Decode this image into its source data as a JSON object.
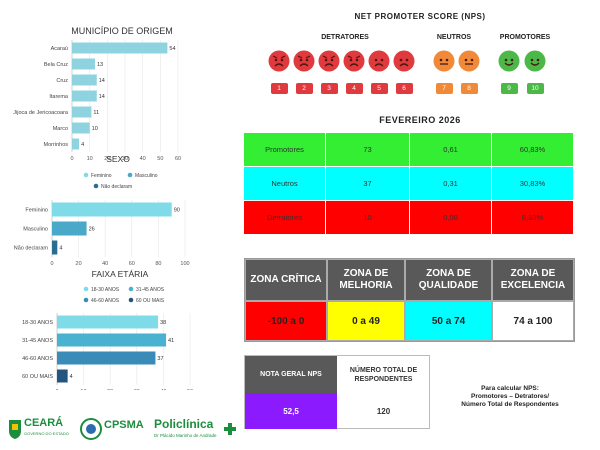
{
  "charts": {
    "municipio": {
      "title": "MUNICÍPIO DE ORIGEM",
      "categories": [
        "Acaraú",
        "Bela Cruz",
        "Cruz",
        "Itarema",
        "Jijoca de Jericoacoara",
        "Marco",
        "Morrinhos"
      ],
      "values": [
        54,
        13,
        14,
        14,
        11,
        10,
        4
      ],
      "x_ticks": [
        "0",
        "10",
        "20",
        "30",
        "40",
        "50",
        "60"
      ],
      "xlim": [
        0,
        60
      ],
      "color": "#8fd3e0"
    },
    "sexo": {
      "title": "SEXO",
      "legend": [
        "Feminino",
        "Masculino",
        "Não declaram"
      ],
      "legend_colors": [
        "#7fdbe8",
        "#4aa9c9",
        "#2a6d93"
      ],
      "categories": [
        "Feminino",
        "Masculino",
        "Não declaram"
      ],
      "values": [
        90,
        26,
        4
      ],
      "colors": [
        "#7fdbe8",
        "#4aa9c9",
        "#2a6d93"
      ],
      "x_ticks": [
        "0",
        "20",
        "40",
        "60",
        "80",
        "100"
      ],
      "xlim": [
        0,
        100
      ]
    },
    "faixa": {
      "title": "FAIXA ETÁRIA",
      "legend": [
        "18-30 ANOS",
        "31-45 ANOS",
        "46-60 ANOS",
        "60 OU MAIS"
      ],
      "legend_colors": [
        "#7fdbe8",
        "#49b2d0",
        "#3a8bb8",
        "#24557f"
      ],
      "categories": [
        "18-30 ANOS",
        "31-45 ANOS",
        "46-60 ANOS",
        "60 OU MAIS"
      ],
      "values": [
        38,
        41,
        37,
        4
      ],
      "colors": [
        "#7fdbe8",
        "#49b2d0",
        "#3a8bb8",
        "#24557f"
      ],
      "x_ticks": [
        "0",
        "10",
        "20",
        "30",
        "40",
        "50"
      ],
      "xlim": [
        0,
        50
      ]
    }
  },
  "nps": {
    "title": "NET PROMOTER SCORE (NPS)",
    "groups": {
      "detratores": "DETRATORES",
      "neutros": "NEUTROS",
      "promotores": "PROMOTORES"
    },
    "scores": [
      "1",
      "2",
      "3",
      "4",
      "5",
      "6",
      "7",
      "8",
      "9",
      "10"
    ],
    "detractor_color": "#e0393e",
    "neutral_color": "#f08a38",
    "promoter_color": "#4cb848"
  },
  "period": "FEVEREIRO 2026",
  "results": {
    "rows": [
      {
        "label": "Promotores",
        "count": "73",
        "ratio": "0,61",
        "pct": "60,83%",
        "bg": "#33ee33"
      },
      {
        "label": "Neutros",
        "count": "37",
        "ratio": "0,31",
        "pct": "30,83%",
        "bg": "#00ffff"
      },
      {
        "label": "Detratores",
        "count": "10",
        "ratio": "0,08",
        "pct": "8,33%",
        "bg": "#ff0000"
      }
    ]
  },
  "zones": {
    "headers": [
      "ZONA CRÍTICA",
      "ZONA DE MELHORIA",
      "ZONA DE QUALIDADE",
      "ZONA DE EXCELENCIA"
    ],
    "ranges": [
      "-100 a 0",
      "0 a 49",
      "50 a 74",
      "74 a 100"
    ],
    "colors": [
      "#ff0000",
      "#ffff00",
      "#00ffff",
      "#ffffff"
    ]
  },
  "nota": {
    "label": "NOTA GERAL NPS",
    "value": "52,5",
    "total_label": "NÚMERO TOTAL DE RESPONDENTES",
    "total_value": "120",
    "value_bg": "#8c1aff"
  },
  "formula": {
    "line1": "Para calcular NPS:",
    "line2": "Promotores – Detratores/",
    "line3": "Número Total de Respondentes"
  },
  "logos": {
    "ceara": "CEARÁ",
    "ceara_sub": "GOVERNO DO ESTADO",
    "cpsma": "CPSMA",
    "policlinica": "Policlínica",
    "policlinica_sub": "Dr Plácido Marinho de Andrade"
  }
}
